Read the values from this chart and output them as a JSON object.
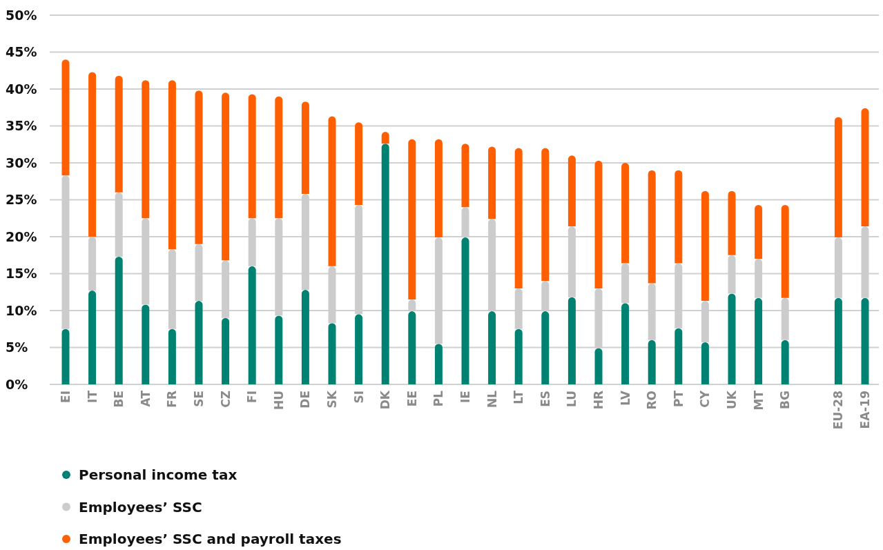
{
  "chart_data": {
    "type": "bar",
    "stacked": true,
    "categories": [
      "EI",
      "IT",
      "BE",
      "AT",
      "FR",
      "SE",
      "CZ",
      "FI",
      "HU",
      "DE",
      "SK",
      "SI",
      "DK",
      "EE",
      "PL",
      "IE",
      "NL",
      "LT",
      "ES",
      "LU",
      "HR",
      "LV",
      "RO",
      "PT",
      "CY",
      "UK",
      "MT",
      "BG",
      null,
      "EU-28",
      "EA-19"
    ],
    "series": [
      {
        "name": "Personal income tax",
        "color": "#008272",
        "values": [
          7.5,
          12.7,
          17.3,
          10.8,
          7.5,
          11.3,
          9,
          16,
          9.3,
          12.8,
          8.3,
          9.5,
          32.6,
          9.9,
          5.5,
          19.9,
          9.9,
          7.5,
          9.9,
          11.8,
          4.9,
          11,
          6,
          7.6,
          5.7,
          12.3,
          11.7,
          6,
          null,
          11.7,
          11.7
        ]
      },
      {
        "name": "Employees’ SSC",
        "color": "#cccccc",
        "values": [
          20.8,
          7.3,
          8.7,
          11.7,
          10.8,
          7.7,
          7.8,
          6.5,
          13.2,
          13,
          7.7,
          14.8,
          0,
          1.6,
          14.4,
          4.1,
          12.5,
          5.5,
          4.1,
          9.6,
          8.1,
          5.4,
          7.7,
          8.8,
          5.6,
          5.2,
          5.3,
          5.7,
          null,
          8.2,
          9.7
        ]
      },
      {
        "name": "Employees’ SSC and payroll taxes",
        "color": "#ff5f00",
        "values": [
          15.7,
          22.3,
          15.8,
          18.7,
          22.9,
          20.8,
          22.7,
          16.8,
          16.5,
          12.5,
          20.3,
          11.2,
          1.6,
          21.7,
          13.3,
          8.6,
          9.8,
          19,
          18,
          9.6,
          17.3,
          13.6,
          15.3,
          12.6,
          14.9,
          8.7,
          7.3,
          12.6,
          null,
          16.3,
          16
        ]
      }
    ],
    "ylim": [
      0,
      50
    ],
    "yticks": [
      {
        "value": 0,
        "label": "0%"
      },
      {
        "value": 5,
        "label": "5%"
      },
      {
        "value": 10,
        "label": "10%"
      },
      {
        "value": 15,
        "label": "15%"
      },
      {
        "value": 20,
        "label": "20%"
      },
      {
        "value": 25,
        "label": "25%"
      },
      {
        "value": 30,
        "label": "30%"
      },
      {
        "value": 35,
        "label": "35%"
      },
      {
        "value": 40,
        "label": "40%"
      },
      {
        "value": 45,
        "label": "45%"
      },
      {
        "value": 50,
        "label": "50%"
      }
    ],
    "grid": "y",
    "legend": "bottom left"
  }
}
